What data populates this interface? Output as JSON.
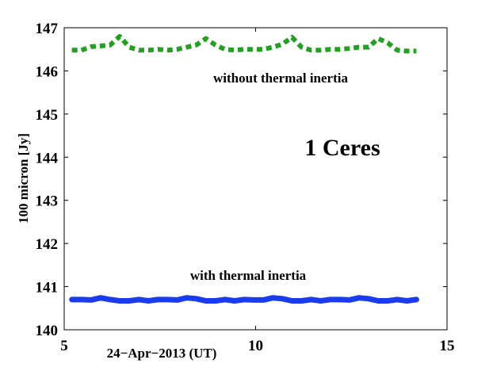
{
  "chart_data": {
    "type": "line",
    "xlabel": "24−Apr−2013 (UT)",
    "ylabel": "100 micron [Jy]",
    "xlim": [
      5,
      15
    ],
    "ylim": [
      140,
      147
    ],
    "xticks": [
      "5",
      "10",
      "15"
    ],
    "yticks": [
      "140",
      "141",
      "142",
      "143",
      "144",
      "145",
      "146",
      "147"
    ],
    "grid": false,
    "annotations": [
      {
        "text": "without thermal inertia"
      },
      {
        "text": "1 Ceres"
      },
      {
        "text": "with thermal inertia"
      }
    ],
    "series": [
      {
        "color": "#22a022",
        "style": "dotted",
        "x": [
          5.2,
          5.45,
          5.7,
          5.95,
          6.2,
          6.45,
          6.7,
          6.95,
          7.2,
          7.45,
          7.7,
          7.95,
          8.2,
          8.45,
          8.7,
          8.95,
          9.2,
          9.45,
          9.7,
          9.95,
          10.2,
          10.45,
          10.7,
          10.95,
          11.2,
          11.45,
          11.7,
          11.95,
          12.2,
          12.45,
          12.7,
          12.95,
          13.2,
          13.45,
          13.7,
          13.95,
          14.2
        ],
        "y": [
          146.48,
          146.48,
          146.56,
          146.58,
          146.6,
          146.8,
          146.55,
          146.48,
          146.48,
          146.5,
          146.48,
          146.5,
          146.55,
          146.6,
          146.75,
          146.6,
          146.5,
          146.48,
          146.5,
          146.5,
          146.5,
          146.55,
          146.62,
          146.78,
          146.55,
          146.48,
          146.48,
          146.5,
          146.5,
          146.52,
          146.55,
          146.55,
          146.75,
          146.65,
          146.48,
          146.46,
          146.46
        ]
      },
      {
        "color": "#1a3cf0",
        "style": "solid",
        "x": [
          5.2,
          5.45,
          5.7,
          5.95,
          6.2,
          6.45,
          6.7,
          6.95,
          7.2,
          7.45,
          7.7,
          7.95,
          8.2,
          8.45,
          8.7,
          8.95,
          9.2,
          9.45,
          9.7,
          9.95,
          10.2,
          10.45,
          10.7,
          10.95,
          11.2,
          11.45,
          11.7,
          11.95,
          12.2,
          12.45,
          12.7,
          12.95,
          13.2,
          13.45,
          13.7,
          13.95,
          14.2
        ],
        "y": [
          140.7,
          140.7,
          140.69,
          140.74,
          140.7,
          140.67,
          140.67,
          140.7,
          140.67,
          140.7,
          140.7,
          140.69,
          140.74,
          140.72,
          140.67,
          140.67,
          140.7,
          140.67,
          140.7,
          140.69,
          140.69,
          140.74,
          140.72,
          140.67,
          140.67,
          140.7,
          140.67,
          140.7,
          140.7,
          140.69,
          140.74,
          140.72,
          140.67,
          140.67,
          140.7,
          140.67,
          140.7
        ]
      }
    ]
  }
}
